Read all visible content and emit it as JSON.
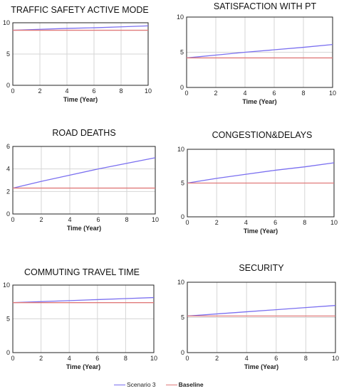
{
  "colors": {
    "scenario": "#7a6ff0",
    "baseline": "#e07a7a",
    "grid": "#d6d6d6",
    "axis": "#222222"
  },
  "legend": {
    "items": [
      {
        "label": "Scenario 3"
      },
      {
        "label": "Baseline"
      }
    ]
  },
  "chart_data": [
    {
      "type": "line",
      "title": "TRAFFIC SAFETY ACTIVE MODE",
      "xlabel": "Time (Year)",
      "ylabel": "",
      "xlim": [
        0,
        10
      ],
      "ylim": [
        0,
        10
      ],
      "xticks": [
        0,
        2,
        4,
        6,
        8,
        10
      ],
      "yticks": [
        0,
        5,
        10
      ],
      "grid": true,
      "x": [
        0,
        2,
        4,
        6,
        8,
        10
      ],
      "series": [
        {
          "name": "Scenario 3",
          "values": [
            8.8,
            8.95,
            9.1,
            9.2,
            9.35,
            9.5
          ]
        },
        {
          "name": "Baseline",
          "values": [
            8.8,
            8.8,
            8.8,
            8.8,
            8.8,
            8.8
          ]
        }
      ]
    },
    {
      "type": "line",
      "title": "SATISFACTION WITH PT",
      "xlabel": "Time (Year)",
      "ylabel": "",
      "xlim": [
        0,
        10
      ],
      "ylim": [
        0,
        10
      ],
      "xticks": [
        0,
        2,
        4,
        6,
        8,
        10
      ],
      "yticks": [
        0,
        5,
        10
      ],
      "grid": true,
      "x": [
        0,
        2,
        4,
        6,
        8,
        10
      ],
      "series": [
        {
          "name": "Scenario 3",
          "values": [
            4.2,
            4.6,
            5.0,
            5.35,
            5.7,
            6.1
          ]
        },
        {
          "name": "Baseline",
          "values": [
            4.2,
            4.2,
            4.2,
            4.2,
            4.2,
            4.2
          ]
        }
      ]
    },
    {
      "type": "line",
      "title": "ROAD DEATHS",
      "xlabel": "Time (Year)",
      "ylabel": "",
      "xlim": [
        0,
        10
      ],
      "ylim": [
        0,
        6
      ],
      "xticks": [
        0,
        2,
        4,
        6,
        8,
        10
      ],
      "yticks": [
        0,
        2,
        4,
        6
      ],
      "grid": true,
      "x": [
        0,
        2,
        4,
        6,
        8,
        10
      ],
      "series": [
        {
          "name": "Scenario 3",
          "values": [
            2.3,
            2.9,
            3.45,
            4.0,
            4.5,
            5.0
          ]
        },
        {
          "name": "Baseline",
          "values": [
            2.3,
            2.3,
            2.3,
            2.3,
            2.3,
            2.3
          ]
        }
      ]
    },
    {
      "type": "line",
      "title": "CONGESTION&DELAYS",
      "xlabel": "Time (Year)",
      "ylabel": "",
      "xlim": [
        0,
        10
      ],
      "ylim": [
        0,
        10
      ],
      "xticks": [
        0,
        2,
        4,
        6,
        8,
        10
      ],
      "yticks": [
        0,
        5,
        10
      ],
      "grid": true,
      "x": [
        0,
        2,
        4,
        6,
        8,
        10
      ],
      "series": [
        {
          "name": "Scenario 3",
          "values": [
            5.0,
            5.7,
            6.3,
            6.9,
            7.4,
            8.0
          ]
        },
        {
          "name": "Baseline",
          "values": [
            5.0,
            5.0,
            5.0,
            5.0,
            5.0,
            5.0
          ]
        }
      ]
    },
    {
      "type": "line",
      "title": "COMMUTING TRAVEL TIME",
      "xlabel": "Time (Year)",
      "ylabel": "",
      "xlim": [
        0,
        10
      ],
      "ylim": [
        0,
        10
      ],
      "xticks": [
        0,
        2,
        4,
        6,
        8,
        10
      ],
      "yticks": [
        0,
        5,
        10
      ],
      "grid": true,
      "x": [
        0,
        2,
        4,
        6,
        8,
        10
      ],
      "series": [
        {
          "name": "Scenario 3",
          "values": [
            7.4,
            7.55,
            7.7,
            7.85,
            8.0,
            8.15
          ]
        },
        {
          "name": "Baseline",
          "values": [
            7.4,
            7.4,
            7.4,
            7.4,
            7.4,
            7.4
          ]
        }
      ]
    },
    {
      "type": "line",
      "title": "SECURITY",
      "xlabel": "Time (Year)",
      "ylabel": "",
      "xlim": [
        0,
        10
      ],
      "ylim": [
        0,
        10
      ],
      "xticks": [
        0,
        2,
        4,
        6,
        8,
        10
      ],
      "yticks": [
        0,
        5,
        10
      ],
      "grid": true,
      "x": [
        0,
        2,
        4,
        6,
        8,
        10
      ],
      "series": [
        {
          "name": "Scenario 3",
          "values": [
            5.2,
            5.5,
            5.8,
            6.1,
            6.4,
            6.7
          ]
        },
        {
          "name": "Baseline",
          "values": [
            5.2,
            5.2,
            5.2,
            5.2,
            5.2,
            5.2
          ]
        }
      ]
    }
  ]
}
